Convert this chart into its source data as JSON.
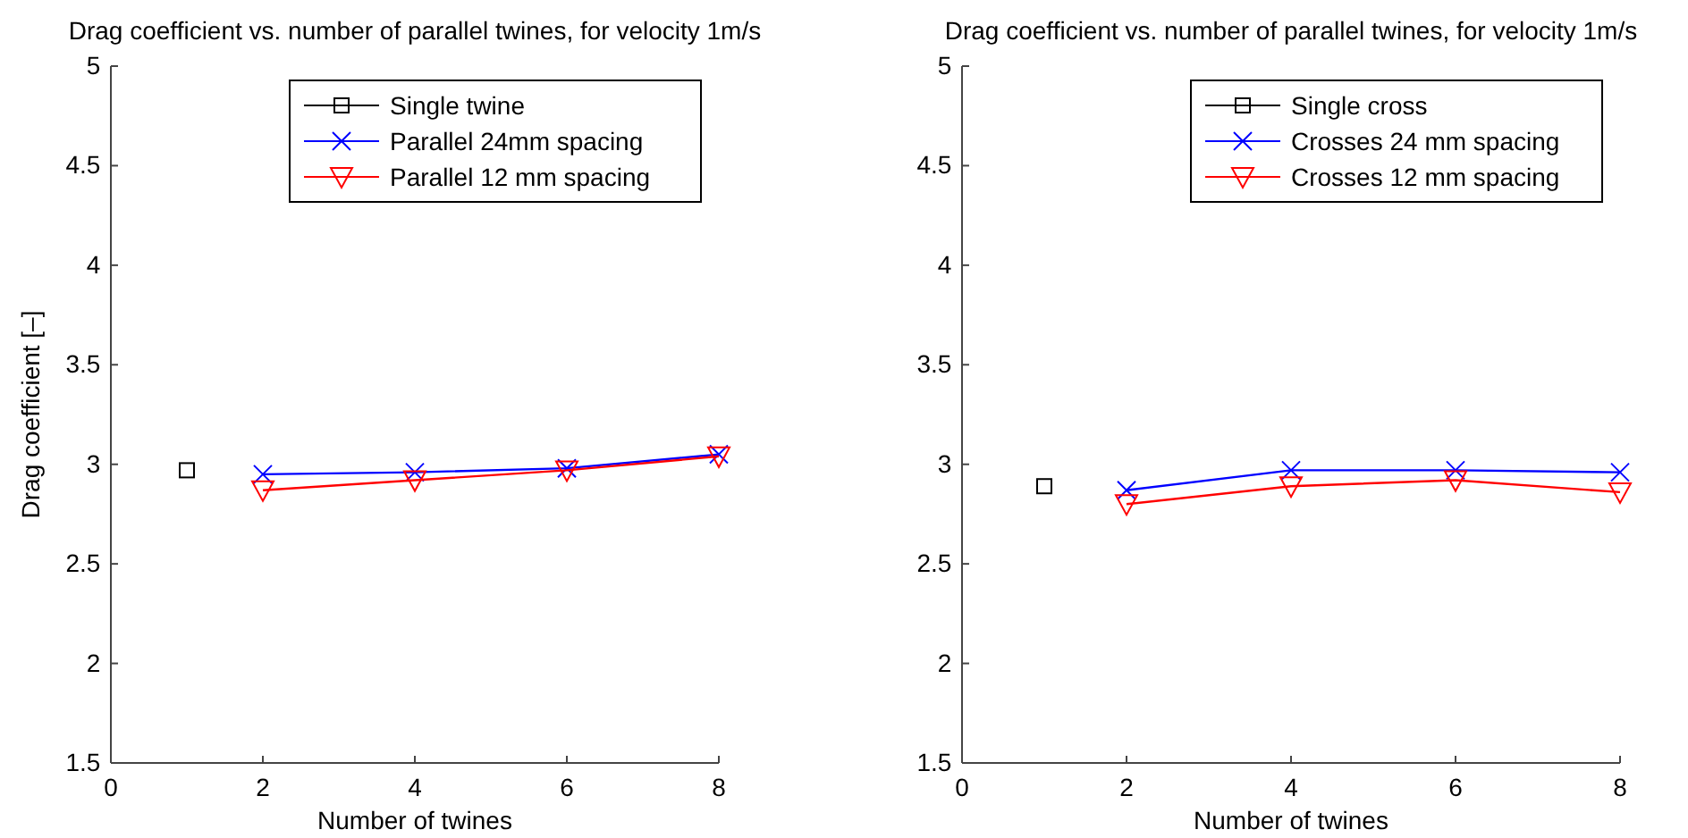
{
  "chart_data": [
    {
      "type": "line",
      "title": "Drag coefficient vs. number of parallel twines, for velocity 1m/s",
      "xlabel": "Number of twines",
      "ylabel": "Drag coefficient [–]",
      "xlim": [
        0,
        8
      ],
      "xticks": [
        0,
        2,
        4,
        6,
        8
      ],
      "ylim": [
        1.5,
        5
      ],
      "yticks": [
        1.5,
        2,
        2.5,
        3,
        3.5,
        4,
        4.5,
        5
      ],
      "grid": false,
      "legend": "top right",
      "series": [
        {
          "name": "Single twine",
          "color": "#000000",
          "marker": "square",
          "x": [
            1
          ],
          "values": [
            2.97
          ]
        },
        {
          "name": "Parallel 24mm spacing",
          "color": "#0000ff",
          "marker": "cross",
          "x": [
            2,
            4,
            6,
            8
          ],
          "values": [
            2.95,
            2.96,
            2.98,
            3.05
          ]
        },
        {
          "name": "Parallel 12 mm spacing",
          "color": "#ff0000",
          "marker": "triangle",
          "x": [
            2,
            4,
            6,
            8
          ],
          "values": [
            2.87,
            2.92,
            2.97,
            3.04
          ]
        }
      ]
    },
    {
      "type": "line",
      "title": "Drag coefficient vs. number of parallel twines, for velocity 1m/s",
      "xlabel": "Number of twines",
      "xlim": [
        0,
        8
      ],
      "xticks": [
        0,
        2,
        4,
        6,
        8
      ],
      "ylim": [
        1.5,
        5
      ],
      "yticks": [
        1.5,
        2,
        2.5,
        3,
        3.5,
        4,
        4.5,
        5
      ],
      "grid": false,
      "legend": "top right",
      "series": [
        {
          "name": "Single cross",
          "color": "#000000",
          "marker": "square",
          "x": [
            1
          ],
          "values": [
            2.89
          ]
        },
        {
          "name": "Crosses 24 mm spacing",
          "color": "#0000ff",
          "marker": "cross",
          "x": [
            2,
            4,
            6,
            8
          ],
          "values": [
            2.87,
            2.97,
            2.97,
            2.96
          ]
        },
        {
          "name": "Crosses 12 mm spacing",
          "color": "#ff0000",
          "marker": "triangle",
          "x": [
            2,
            4,
            6,
            8
          ],
          "values": [
            2.8,
            2.89,
            2.92,
            2.86
          ]
        }
      ]
    }
  ]
}
